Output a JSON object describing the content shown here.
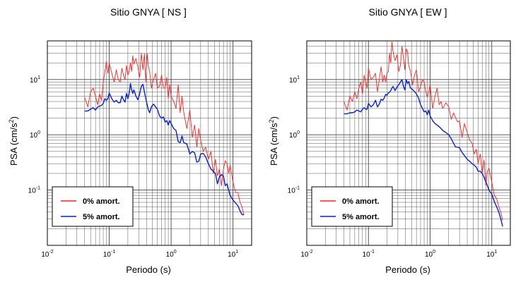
{
  "colors": {
    "series_0": "#ff2020",
    "series_5": "#0a1fd6",
    "grid": "#444444",
    "frame": "#000000"
  },
  "chart_data": [
    {
      "type": "line",
      "title": "Sitio GNYA [ NS ]",
      "xlabel": "Periodo (s)",
      "ylabel": "PSA (cm/s2)",
      "xscale": "log",
      "yscale": "log",
      "xlim": [
        0.01,
        20
      ],
      "ylim": [
        0.01,
        50
      ],
      "grid": true,
      "legend_position": "bottom-left",
      "x_ticks": [
        {
          "base": "10",
          "exp": "-2",
          "value": 0.01
        },
        {
          "base": "10",
          "exp": "-1",
          "value": 0.1
        },
        {
          "base": "10",
          "exp": "0",
          "value": 1
        },
        {
          "base": "10",
          "exp": "1",
          "value": 10
        }
      ],
      "y_ticks": [
        {
          "base": "10",
          "exp": "-1",
          "value": 0.1
        },
        {
          "base": "10",
          "exp": "0",
          "value": 1
        },
        {
          "base": "10",
          "exp": "1",
          "value": 10
        }
      ],
      "series": [
        {
          "name": "0% amort.",
          "color": "#ff2020",
          "x": [
            0.04,
            0.045,
            0.05,
            0.055,
            0.06,
            0.065,
            0.07,
            0.075,
            0.08,
            0.085,
            0.09,
            0.095,
            0.1,
            0.11,
            0.12,
            0.13,
            0.14,
            0.15,
            0.16,
            0.17,
            0.18,
            0.19,
            0.2,
            0.21,
            0.22,
            0.23,
            0.24,
            0.25,
            0.27,
            0.29,
            0.31,
            0.33,
            0.35,
            0.37,
            0.39,
            0.41,
            0.43,
            0.45,
            0.48,
            0.52,
            0.56,
            0.6,
            0.65,
            0.7,
            0.75,
            0.8,
            0.85,
            0.9,
            0.95,
            1,
            1.1,
            1.2,
            1.3,
            1.4,
            1.5,
            1.6,
            1.8,
            2,
            2.2,
            2.4,
            2.6,
            2.8,
            3,
            3.3,
            3.6,
            4,
            4.4,
            4.8,
            5.2,
            5.6,
            6,
            6.5,
            7,
            7.5,
            8,
            8.5,
            9,
            10,
            11,
            12,
            13,
            14,
            15
          ],
          "y": [
            4.8,
            3.2,
            6,
            7,
            5,
            3.5,
            5.5,
            4.2,
            9,
            14,
            21,
            13,
            20,
            13,
            9,
            15,
            10,
            9,
            16,
            12,
            10,
            18,
            12,
            14,
            20,
            14,
            27,
            19,
            24,
            17,
            11,
            30,
            15,
            29,
            9,
            29,
            17,
            14,
            7,
            10,
            13,
            7,
            7.5,
            12,
            7,
            7,
            11,
            4.5,
            8,
            5,
            4,
            3,
            8,
            2.5,
            5,
            2.5,
            1.3,
            2.8,
            0.9,
            1.5,
            0.6,
            1.3,
            0.8,
            0.5,
            0.6,
            0.36,
            0.5,
            0.2,
            0.36,
            0.18,
            0.24,
            0.12,
            0.24,
            0.34,
            0.3,
            0.2,
            0.28,
            0.14,
            0.09,
            0.09,
            0.06,
            0.05,
            0.035
          ]
        },
        {
          "name": "5% amort.",
          "color": "#0a1fd6",
          "x": [
            0.04,
            0.045,
            0.05,
            0.055,
            0.06,
            0.065,
            0.07,
            0.075,
            0.08,
            0.085,
            0.09,
            0.095,
            0.1,
            0.11,
            0.12,
            0.13,
            0.14,
            0.15,
            0.16,
            0.17,
            0.18,
            0.19,
            0.2,
            0.21,
            0.22,
            0.23,
            0.24,
            0.25,
            0.27,
            0.29,
            0.31,
            0.33,
            0.35,
            0.37,
            0.39,
            0.41,
            0.43,
            0.45,
            0.48,
            0.52,
            0.56,
            0.6,
            0.65,
            0.7,
            0.75,
            0.8,
            0.85,
            0.9,
            0.95,
            1,
            1.1,
            1.2,
            1.3,
            1.4,
            1.5,
            1.6,
            1.8,
            2,
            2.2,
            2.4,
            2.6,
            2.8,
            3,
            3.3,
            3.6,
            4,
            4.4,
            4.8,
            5.2,
            5.6,
            6,
            6.5,
            7,
            7.5,
            8,
            8.5,
            9,
            10,
            11,
            12,
            13,
            14,
            15
          ],
          "y": [
            2.7,
            2.7,
            2.9,
            3.1,
            2.8,
            3.2,
            3.3,
            3.4,
            3.7,
            4.5,
            4.2,
            4.5,
            5.7,
            4.5,
            3.9,
            4.2,
            3.8,
            3.8,
            5,
            4.3,
            3.9,
            5.6,
            4.5,
            5.6,
            8.5,
            6.5,
            5.6,
            6.5,
            5,
            4.3,
            5.5,
            7.5,
            8.2,
            6,
            4.5,
            3.5,
            2.8,
            2.5,
            3.2,
            3.6,
            3.2,
            2.9,
            2.2,
            2,
            2.1,
            1.7,
            1.8,
            1.5,
            1.8,
            1.6,
            1.3,
            1.2,
            0.75,
            0.72,
            0.95,
            0.72,
            0.68,
            0.45,
            0.5,
            0.47,
            0.32,
            0.33,
            0.45,
            0.46,
            0.4,
            0.3,
            0.24,
            0.22,
            0.2,
            0.13,
            0.17,
            0.19,
            0.18,
            0.12,
            0.13,
            0.1,
            0.08,
            0.066,
            0.058,
            0.052,
            0.042,
            0.036,
            0.036
          ]
        }
      ]
    },
    {
      "type": "line",
      "title": "Sitio GNYA [ EW ]",
      "xlabel": "Periodo (s)",
      "ylabel": "PSA (cm/s2)",
      "xscale": "log",
      "yscale": "log",
      "xlim": [
        0.01,
        20
      ],
      "ylim": [
        0.01,
        50
      ],
      "grid": true,
      "legend_position": "bottom-left",
      "x_ticks": [
        {
          "base": "10",
          "exp": "-2",
          "value": 0.01
        },
        {
          "base": "10",
          "exp": "-1",
          "value": 0.1
        },
        {
          "base": "10",
          "exp": "0",
          "value": 1
        },
        {
          "base": "10",
          "exp": "1",
          "value": 10
        }
      ],
      "y_ticks": [
        {
          "base": "10",
          "exp": "-1",
          "value": 0.1
        },
        {
          "base": "10",
          "exp": "0",
          "value": 1
        },
        {
          "base": "10",
          "exp": "1",
          "value": 10
        }
      ],
      "series": [
        {
          "name": "0% amort.",
          "color": "#ff2020",
          "x": [
            0.04,
            0.045,
            0.05,
            0.055,
            0.06,
            0.065,
            0.07,
            0.075,
            0.08,
            0.085,
            0.09,
            0.095,
            0.1,
            0.11,
            0.12,
            0.13,
            0.14,
            0.15,
            0.16,
            0.17,
            0.18,
            0.19,
            0.2,
            0.21,
            0.22,
            0.23,
            0.24,
            0.25,
            0.27,
            0.29,
            0.31,
            0.33,
            0.35,
            0.37,
            0.39,
            0.41,
            0.43,
            0.45,
            0.48,
            0.52,
            0.56,
            0.6,
            0.65,
            0.7,
            0.75,
            0.8,
            0.85,
            0.9,
            0.95,
            1,
            1.1,
            1.2,
            1.3,
            1.4,
            1.5,
            1.6,
            1.8,
            2,
            2.2,
            2.4,
            2.6,
            2.8,
            3,
            3.3,
            3.6,
            4,
            4.4,
            4.8,
            5.2,
            5.6,
            6,
            6.5,
            7,
            7.5,
            8,
            8.5,
            9,
            10,
            11,
            12,
            13,
            14,
            15
          ],
          "y": [
            4,
            2.8,
            5,
            4,
            6,
            4.5,
            7,
            9,
            5.5,
            12,
            9,
            7,
            16,
            10,
            11,
            13,
            6,
            10,
            17,
            9,
            12,
            9,
            13,
            14,
            30,
            20,
            48,
            32,
            22,
            28,
            14,
            18,
            40,
            24,
            15,
            36,
            33,
            18,
            14,
            8,
            12,
            15,
            6,
            7.5,
            10,
            9,
            6,
            4.8,
            6,
            8,
            3,
            5,
            7,
            3.5,
            4,
            3,
            3.8,
            3.2,
            1.9,
            2.5,
            2,
            1.7,
            1.8,
            0.9,
            1.6,
            1.1,
            0.8,
            0.7,
            0.45,
            0.55,
            0.3,
            0.45,
            0.2,
            0.35,
            0.12,
            0.22,
            0.25,
            0.14,
            0.08,
            0.07,
            0.05,
            0.04,
            0.028
          ]
        },
        {
          "name": "5% amort.",
          "color": "#0a1fd6",
          "x": [
            0.04,
            0.045,
            0.05,
            0.055,
            0.06,
            0.065,
            0.07,
            0.075,
            0.08,
            0.085,
            0.09,
            0.095,
            0.1,
            0.11,
            0.12,
            0.13,
            0.14,
            0.15,
            0.16,
            0.17,
            0.18,
            0.19,
            0.2,
            0.21,
            0.22,
            0.23,
            0.24,
            0.25,
            0.27,
            0.29,
            0.31,
            0.33,
            0.35,
            0.37,
            0.39,
            0.41,
            0.43,
            0.45,
            0.48,
            0.52,
            0.56,
            0.6,
            0.65,
            0.7,
            0.75,
            0.8,
            0.85,
            0.9,
            0.95,
            1,
            1.1,
            1.2,
            1.3,
            1.4,
            1.5,
            1.6,
            1.8,
            2,
            2.2,
            2.4,
            2.6,
            2.8,
            3,
            3.3,
            3.6,
            4,
            4.4,
            4.8,
            5.2,
            5.6,
            6,
            6.5,
            7,
            7.5,
            8,
            8.5,
            9,
            10,
            11,
            12,
            13,
            14,
            15
          ],
          "y": [
            2.4,
            2.4,
            2.5,
            2.5,
            2.6,
            2.8,
            2.7,
            2.6,
            2.9,
            3.1,
            2.9,
            2.9,
            3.7,
            3.2,
            3.5,
            4.2,
            3.2,
            3.6,
            4.4,
            4.2,
            4.6,
            5.4,
            5.2,
            5.7,
            5.9,
            6.3,
            7,
            7.5,
            6.3,
            7.3,
            8,
            9,
            10,
            7.5,
            6.5,
            10,
            8.5,
            9.2,
            7,
            6.6,
            6,
            5.5,
            4.6,
            3.5,
            3,
            2.6,
            2.7,
            2.3,
            2.8,
            2.2,
            1.8,
            1.6,
            1.5,
            1.4,
            1.3,
            1.2,
            1.1,
            1,
            0.85,
            0.7,
            0.6,
            0.6,
            0.58,
            0.48,
            0.42,
            0.36,
            0.33,
            0.3,
            0.28,
            0.26,
            0.22,
            0.22,
            0.2,
            0.17,
            0.14,
            0.12,
            0.1,
            0.085,
            0.062,
            0.05,
            0.04,
            0.03,
            0.022
          ]
        }
      ]
    }
  ]
}
